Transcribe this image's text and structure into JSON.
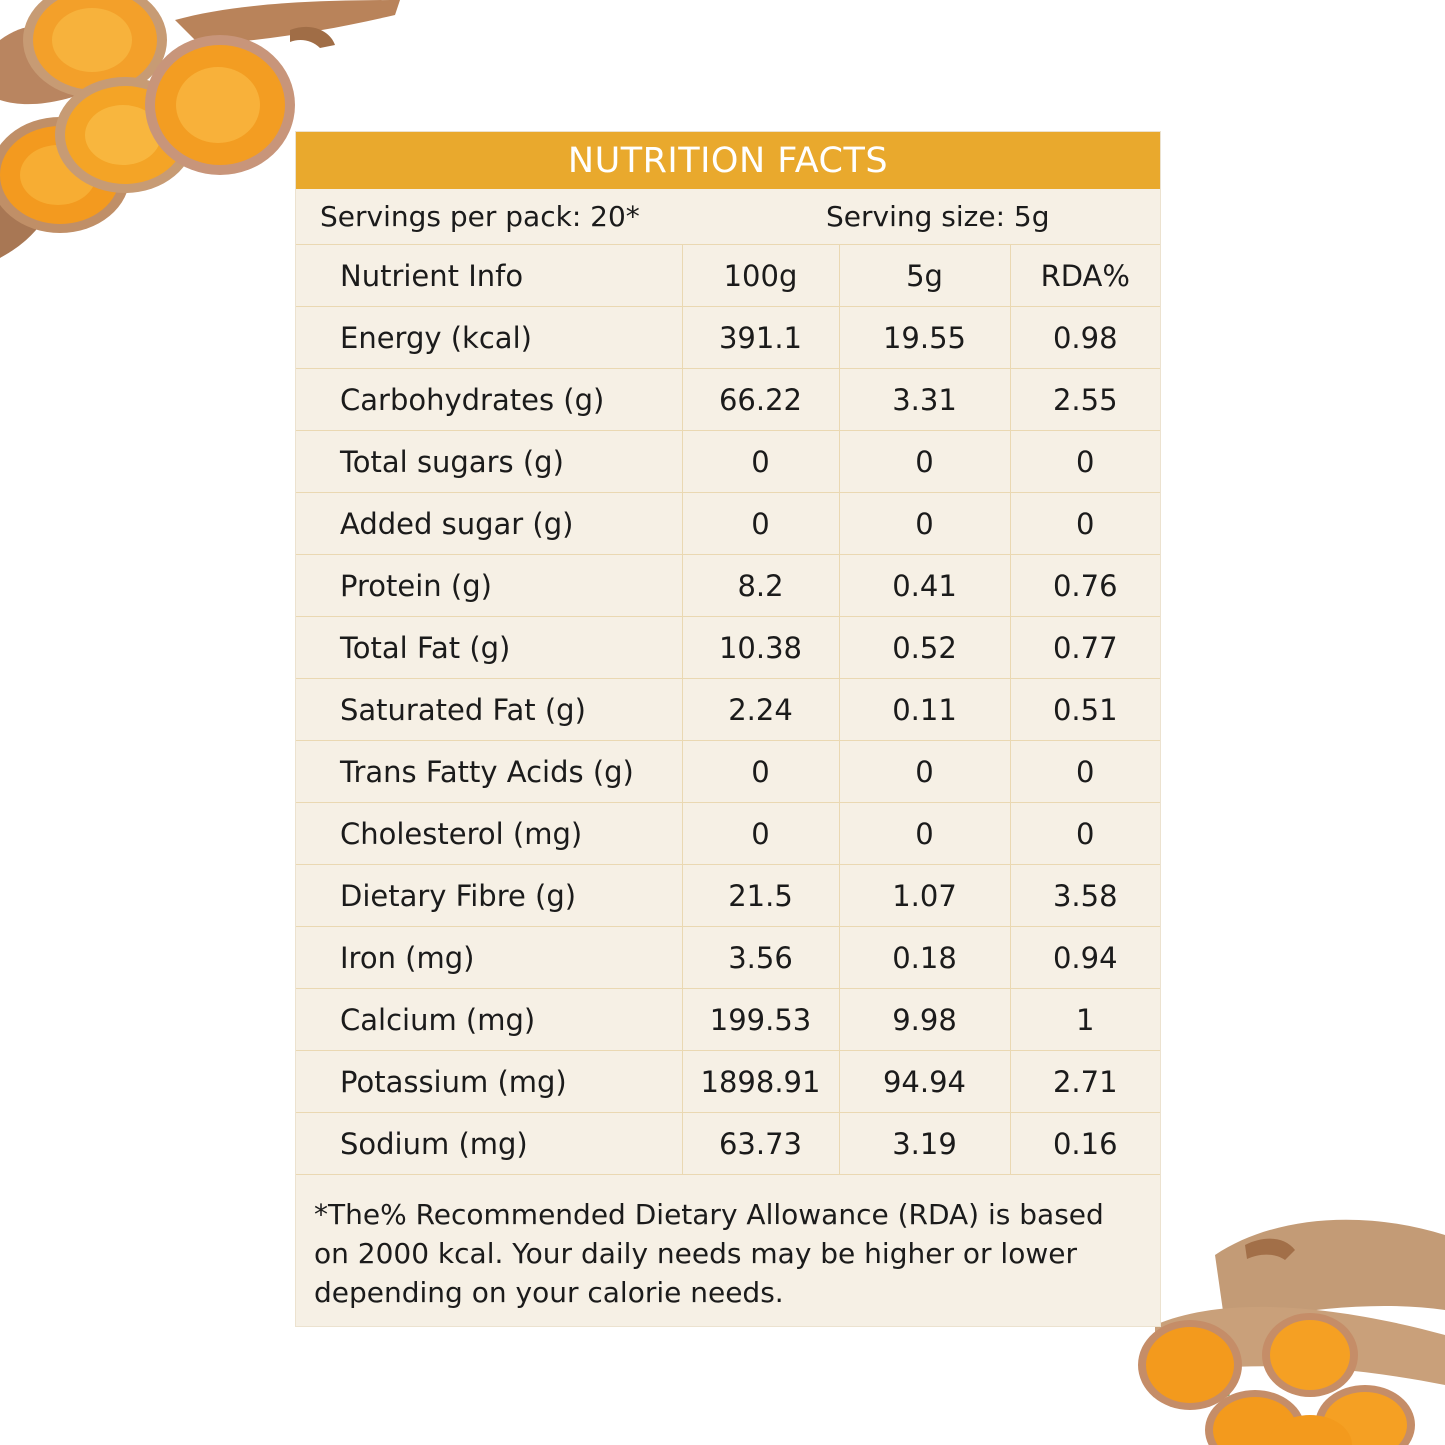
{
  "title": "NUTRITION FACTS",
  "servings_per_pack": "Servings per pack: 20*",
  "serving_size": "Serving size: 5g",
  "columns": [
    "Nutrient Info",
    "100g",
    "5g",
    "RDA%"
  ],
  "rows": [
    [
      "Energy (kcal)",
      "391.1",
      "19.55",
      "0.98"
    ],
    [
      "Carbohydrates (g)",
      "66.22",
      "3.31",
      "2.55"
    ],
    [
      "Total sugars (g)",
      "0",
      "0",
      "0"
    ],
    [
      "Added sugar (g)",
      "0",
      "0",
      "0"
    ],
    [
      "Protein (g)",
      "8.2",
      "0.41",
      "0.76"
    ],
    [
      "Total Fat (g)",
      "10.38",
      "0.52",
      "0.77"
    ],
    [
      "Saturated Fat (g)",
      "2.24",
      "0.11",
      "0.51"
    ],
    [
      "Trans Fatty Acids (g)",
      "0",
      "0",
      "0"
    ],
    [
      "Cholesterol (mg)",
      "0",
      "0",
      "0"
    ],
    [
      "Dietary Fibre (g)",
      "21.5",
      "1.07",
      "3.58"
    ],
    [
      "Iron (mg)",
      "3.56",
      "0.18",
      "0.94"
    ],
    [
      "Calcium (mg)",
      "199.53",
      "9.98",
      "1"
    ],
    [
      "Potassium (mg)",
      "1898.91",
      "94.94",
      "2.71"
    ],
    [
      "Sodium (mg)",
      "63.73",
      "3.19",
      "0.16"
    ]
  ],
  "footnote": "*The% Recommended Dietary Allowance (RDA) is based on 2000 kcal. Your daily needs may be higher or lower depending on your calorie needs.",
  "colors": {
    "header_bg": "#e9a92d",
    "panel_bg": "#f6f0e5",
    "rule": "#ead8b2"
  },
  "decorations": [
    "turmeric-slices-illustration",
    "turmeric-roots-illustration"
  ]
}
